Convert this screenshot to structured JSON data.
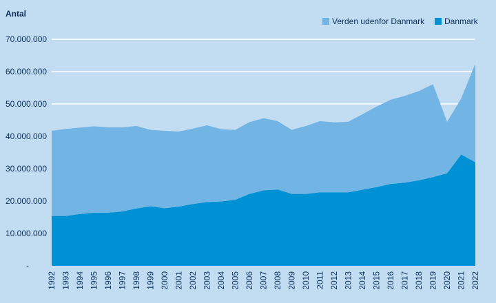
{
  "chart_data": {
    "type": "area",
    "stacked": true,
    "ylabel": "Antal",
    "ylim": [
      0,
      80000000
    ],
    "yticks": [
      {
        "value": 0,
        "label": "-"
      },
      {
        "value": 10000000,
        "label": "10.000.000"
      },
      {
        "value": 20000000,
        "label": "20.000.000"
      },
      {
        "value": 30000000,
        "label": "30.000.000"
      },
      {
        "value": 40000000,
        "label": "40.000.000"
      },
      {
        "value": 50000000,
        "label": "50.000.000"
      },
      {
        "value": 60000000,
        "label": "60.000.000"
      },
      {
        "value": 70000000,
        "label": "70.000.000"
      }
    ],
    "categories": [
      "1992",
      "1993",
      "1994",
      "1995",
      "1996",
      "1997",
      "1998",
      "1999",
      "2000",
      "2001",
      "2002",
      "2003",
      "2004",
      "2005",
      "2006",
      "2007",
      "2008",
      "2009",
      "2010",
      "2011",
      "2012",
      "2013",
      "2014",
      "2015",
      "2016",
      "2017",
      "2018",
      "2019",
      "2020",
      "2021",
      "2022"
    ],
    "series": [
      {
        "name": "Danmark",
        "color": "#0090d4",
        "values": [
          15400000,
          15400000,
          16000000,
          16400000,
          16400000,
          16800000,
          17700000,
          18400000,
          17800000,
          18300000,
          19100000,
          19700000,
          19900000,
          20400000,
          22200000,
          23300000,
          23600000,
          22200000,
          22200000,
          22700000,
          22700000,
          22700000,
          23500000,
          24300000,
          25300000,
          25700000,
          26400000,
          27400000,
          28600000,
          34400000,
          32000000
        ]
      },
      {
        "name": "Verden udenfor Danmark",
        "color": "#72b4e4",
        "values": [
          26300000,
          26900000,
          26700000,
          26700000,
          26400000,
          26000000,
          25500000,
          23600000,
          23900000,
          23200000,
          23300000,
          23700000,
          22300000,
          21600000,
          22200000,
          22300000,
          21100000,
          19800000,
          21000000,
          22000000,
          21600000,
          21800000,
          23300000,
          24900000,
          26000000,
          26800000,
          27600000,
          28700000,
          15900000,
          17300000,
          30500000
        ]
      }
    ],
    "legend": [
      {
        "name": "Verden udenfor Danmark",
        "color": "#72b4e4"
      },
      {
        "name": "Danmark",
        "color": "#0090d4"
      }
    ],
    "legend_position": "top-right",
    "grid": true,
    "gridline_color": "#ffffff",
    "background_color": "#c2dcf2",
    "text_color": "#0b2f5a"
  }
}
